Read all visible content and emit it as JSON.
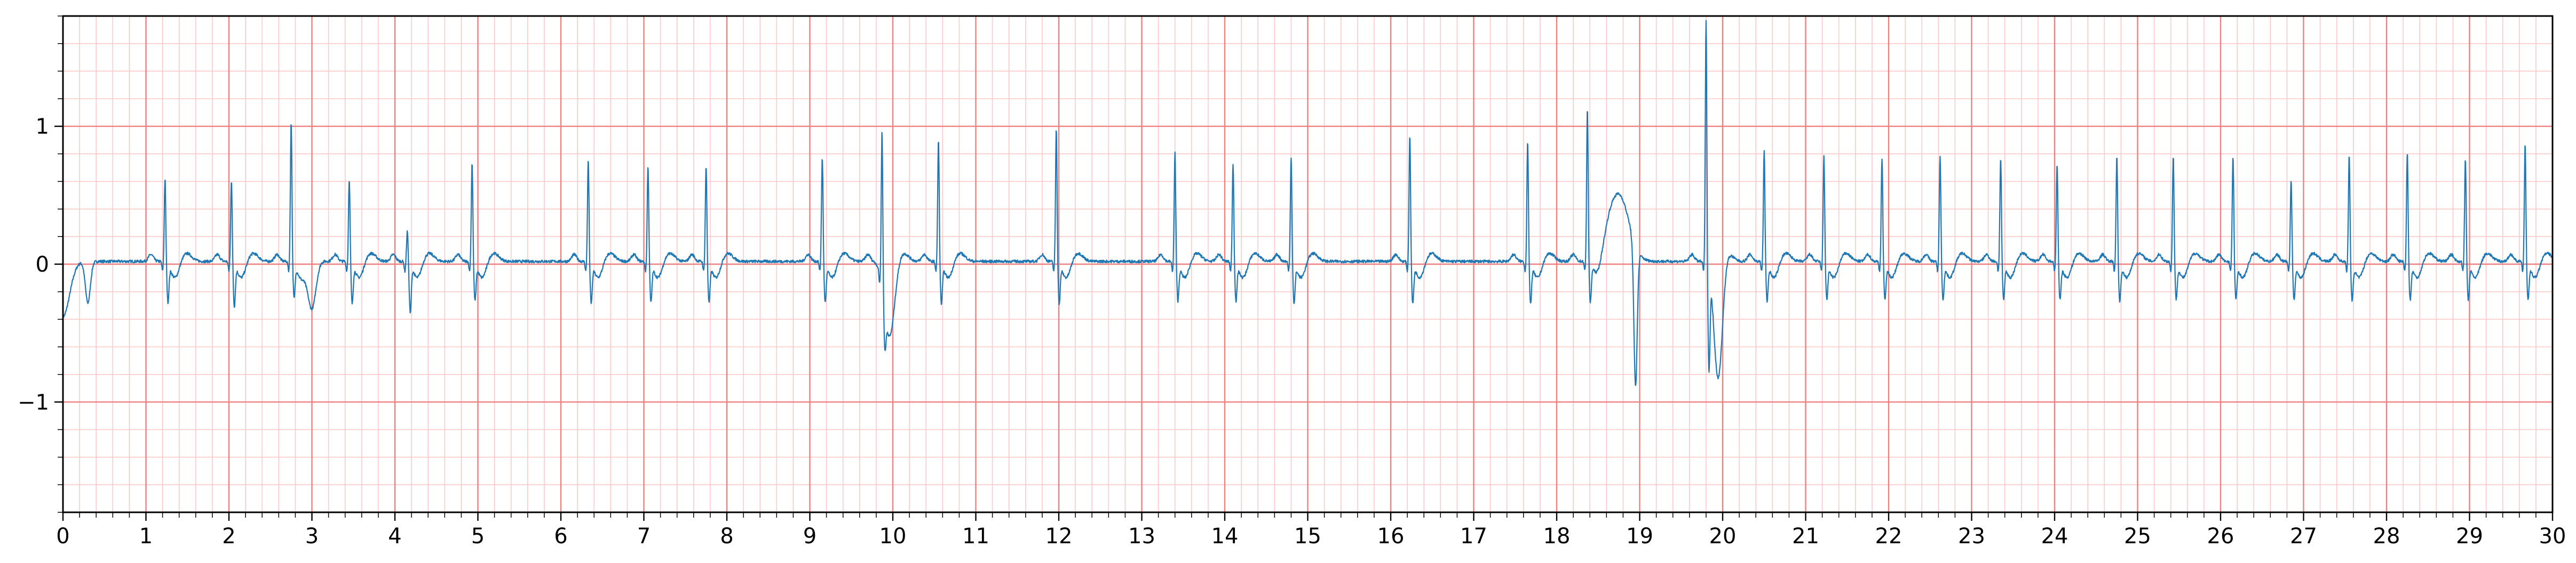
{
  "chart_data": {
    "type": "line",
    "title": "",
    "xlabel": "",
    "ylabel": "",
    "xlim": [
      0,
      30
    ],
    "ylim": [
      -1.8,
      1.8
    ],
    "grid": true,
    "grid_style": "ecg-paper",
    "colors": {
      "major_grid": "#f08080",
      "minor_grid": "#ffc8c8",
      "trace": "#1f77b4",
      "axes": "#000000"
    },
    "x_ticks": [
      0,
      1,
      2,
      3,
      4,
      5,
      6,
      7,
      8,
      9,
      10,
      11,
      12,
      13,
      14,
      15,
      16,
      17,
      18,
      19,
      20,
      21,
      22,
      23,
      24,
      25,
      26,
      27,
      28,
      29,
      30
    ],
    "x_tick_labels": [
      "0",
      "1",
      "2",
      "3",
      "4",
      "5",
      "6",
      "7",
      "8",
      "9",
      "10",
      "11",
      "12",
      "13",
      "14",
      "15",
      "16",
      "17",
      "18",
      "19",
      "20",
      "21",
      "22",
      "23",
      "24",
      "25",
      "26",
      "27",
      "28",
      "29",
      "30"
    ],
    "y_ticks": [
      -1,
      0,
      1
    ],
    "y_tick_labels": [
      "−1",
      "0",
      "1"
    ],
    "x_minor_step": 0.2,
    "y_minor_step": 0.2,
    "baseline": 0.02,
    "qrs_peaks": [
      {
        "t": 1.23,
        "r": 0.63,
        "s": -0.27
      },
      {
        "t": 2.03,
        "r": 0.62,
        "s": -0.3
      },
      {
        "t": 2.75,
        "r": 1.05,
        "s": -0.24
      },
      {
        "t": 3.45,
        "r": 0.63,
        "s": -0.28
      },
      {
        "t": 4.15,
        "r": 0.25,
        "s": -0.35
      },
      {
        "t": 4.93,
        "r": 0.75,
        "s": -0.26
      },
      {
        "t": 6.33,
        "r": 0.77,
        "s": -0.28
      },
      {
        "t": 7.05,
        "r": 0.72,
        "s": -0.27
      },
      {
        "t": 7.75,
        "r": 0.72,
        "s": -0.27
      },
      {
        "t": 9.15,
        "r": 0.79,
        "s": -0.27
      },
      {
        "t": 9.87,
        "r": 1.16,
        "s": -0.28
      },
      {
        "t": 10.55,
        "r": 0.91,
        "s": -0.28
      },
      {
        "t": 11.97,
        "r": 1.0,
        "s": -0.28
      },
      {
        "t": 13.4,
        "r": 0.82,
        "s": -0.26
      },
      {
        "t": 14.1,
        "r": 0.74,
        "s": -0.26
      },
      {
        "t": 14.8,
        "r": 0.79,
        "s": -0.28
      },
      {
        "t": 16.23,
        "r": 0.95,
        "s": -0.28
      },
      {
        "t": 17.65,
        "r": 0.9,
        "s": -0.28
      },
      {
        "t": 18.37,
        "r": 1.14,
        "s": -0.28
      },
      {
        "t": 19.8,
        "r": 1.8,
        "s": -0.72
      },
      {
        "t": 20.5,
        "r": 0.83,
        "s": -0.26
      },
      {
        "t": 21.22,
        "r": 0.79,
        "s": -0.25
      },
      {
        "t": 21.92,
        "r": 0.78,
        "s": -0.25
      },
      {
        "t": 22.62,
        "r": 0.8,
        "s": -0.25
      },
      {
        "t": 23.35,
        "r": 0.78,
        "s": -0.25
      },
      {
        "t": 24.03,
        "r": 0.73,
        "s": -0.25
      },
      {
        "t": 24.75,
        "r": 0.79,
        "s": -0.26
      },
      {
        "t": 25.43,
        "r": 0.79,
        "s": -0.25
      },
      {
        "t": 26.15,
        "r": 0.79,
        "s": -0.25
      },
      {
        "t": 26.85,
        "r": 0.62,
        "s": -0.25
      },
      {
        "t": 27.55,
        "r": 0.8,
        "s": -0.26
      },
      {
        "t": 28.25,
        "r": 0.82,
        "s": -0.25
      },
      {
        "t": 28.95,
        "r": 0.78,
        "s": -0.25
      },
      {
        "t": 29.67,
        "r": 0.88,
        "s": -0.25
      }
    ],
    "extra_events": [
      {
        "t": 0.0,
        "v": -0.4,
        "w": 0.08
      },
      {
        "t": 0.3,
        "v": -0.3,
        "w": 0.03
      },
      {
        "t": 3.0,
        "v": -0.4,
        "w": 0.05
      },
      {
        "t": 9.95,
        "v": -0.45,
        "w": 0.06
      },
      {
        "t": 18.75,
        "v": 0.48,
        "w": 0.12
      },
      {
        "t": 18.95,
        "v": -1.02,
        "w": 0.02
      },
      {
        "t": 19.95,
        "v": -0.75,
        "w": 0.05
      }
    ]
  }
}
